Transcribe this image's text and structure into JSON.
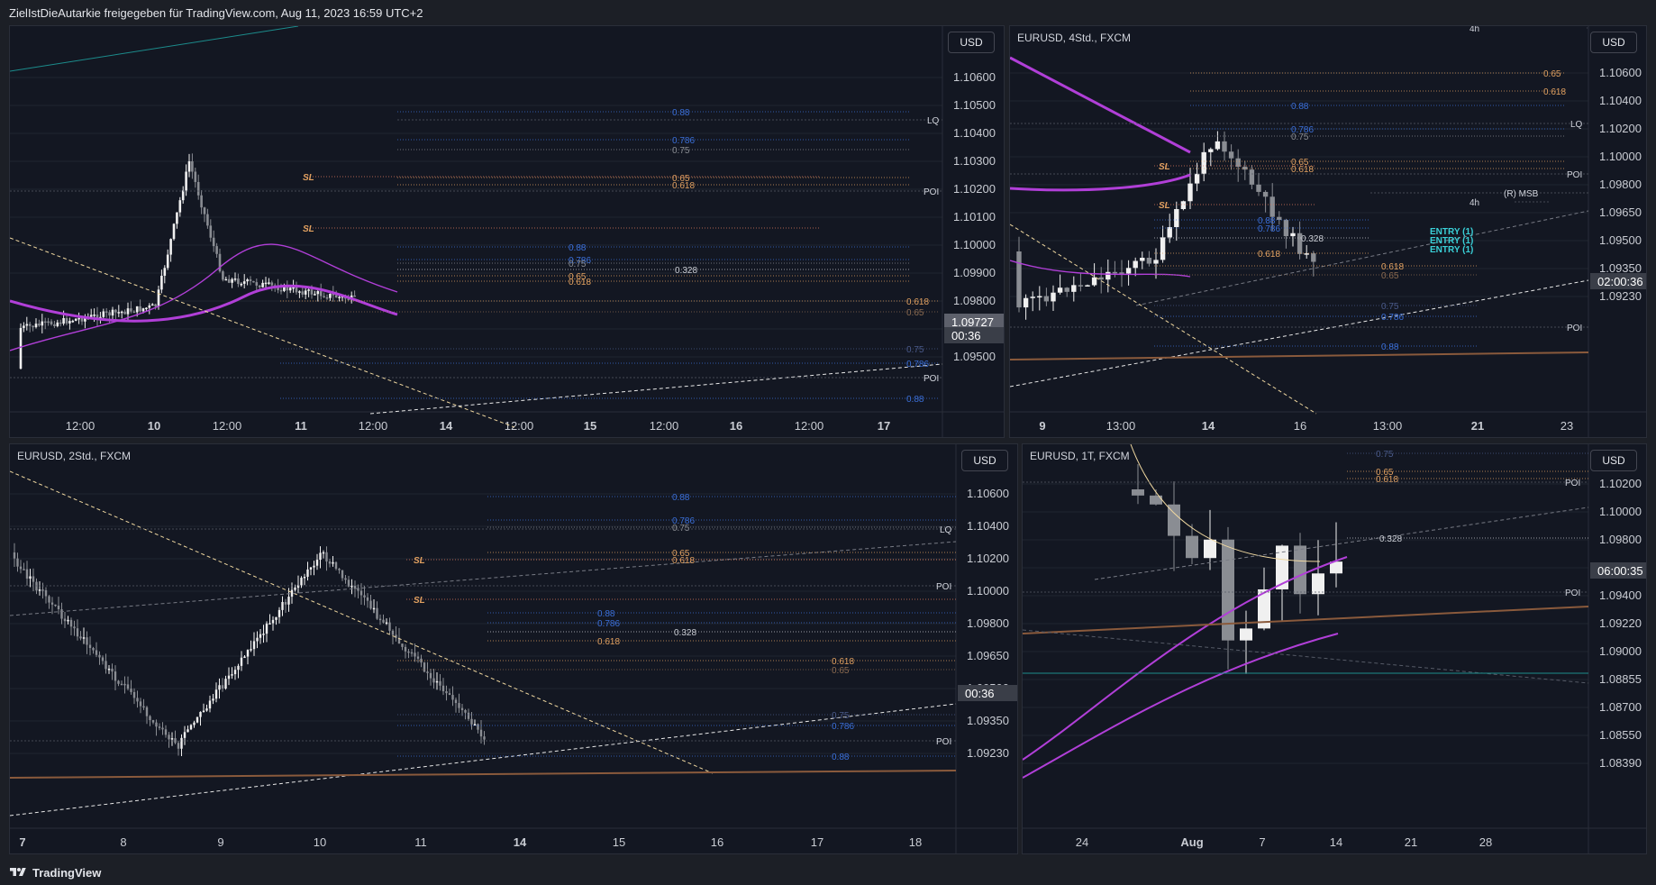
{
  "header": {
    "text": "ZielIstDieAutarkie freigegeben für TradingView.com, Aug 11, 2023 16:59 UTC+2"
  },
  "footer": {
    "brand": "TradingView"
  },
  "colors": {
    "bg": "#131722",
    "grid": "#1f2430",
    "up": "#f0f0f0",
    "down": "#8a8d93",
    "ma_purple": "#b13fd8",
    "blue_fib": "#3b6fd8",
    "orange_fib": "#e0a060",
    "trend_white": "#e8e8e8",
    "trend_cream": "#f0d8a0",
    "brown_line": "#8a5a3c",
    "teal": "#1c8c8c",
    "cyan_label": "#3ad0d8"
  },
  "chart_data": [
    {
      "id": "p1",
      "type": "candlestick",
      "title": "",
      "currency": "USD",
      "yticks": [
        "1.10600",
        "1.10500",
        "1.10400",
        "1.10300",
        "1.10200",
        "1.10100",
        "1.10000",
        "1.09900",
        "1.09800",
        "1.09600",
        "1.09500"
      ],
      "price_label": "1.09727",
      "countdown": "00:36",
      "xticks": [
        "12:00",
        "10",
        "12:00",
        "11",
        "12:00",
        "14",
        "12:00",
        "15",
        "12:00",
        "16",
        "12:00",
        "17"
      ],
      "fib_labels": [
        "0.88",
        "0.786",
        "0.75",
        "0.65",
        "0.618",
        "0.88",
        "0.786",
        "0.75",
        "0.65",
        "0.618",
        "0.328",
        "0.618",
        "0.65",
        "0.75",
        "0.786",
        "0.88"
      ],
      "sl_labels": [
        "SL",
        "SL"
      ],
      "side_labels": [
        "LQ",
        "POI",
        "POI"
      ]
    },
    {
      "id": "p2",
      "type": "candlestick",
      "title": "EURUSD, 4Std., FXCM",
      "currency": "USD",
      "yticks": [
        "1.10600",
        "1.10400",
        "1.10200",
        "1.10000",
        "1.09800",
        "1.09650",
        "1.09500",
        "1.09350",
        "1.09230"
      ],
      "countdown": "02:00:36",
      "xticks": [
        "9",
        "13:00",
        "14",
        "16",
        "13:00",
        "21",
        "23"
      ],
      "fib_labels": [
        "0.65",
        "0.618",
        "0.88",
        "0.786",
        "0.75",
        "0.65",
        "0.618",
        "0.88",
        "0.786",
        "0.328",
        "0.618",
        "0.618",
        "0.65",
        "0.75",
        "0.786",
        "0.88"
      ],
      "sl_labels": [
        "SL",
        "SL"
      ],
      "side_labels": [
        "LQ",
        "POI",
        "(R) MSB",
        "4h",
        "4h",
        "POI"
      ],
      "entry_labels": [
        "ENTRY (1)",
        "ENTRY (1)",
        "ENTRY (1)"
      ]
    },
    {
      "id": "p3",
      "type": "candlestick",
      "title": "EURUSD, 2Std., FXCM",
      "currency": "USD",
      "yticks": [
        "1.10600",
        "1.10400",
        "1.10200",
        "1.10000",
        "1.09800",
        "1.09650",
        "1.09500",
        "1.09350",
        "1.09230"
      ],
      "countdown": "00:36",
      "xticks": [
        "7",
        "8",
        "9",
        "10",
        "11",
        "14",
        "15",
        "16",
        "17",
        "18"
      ],
      "fib_labels": [
        "0.88",
        "0.786",
        "0.75",
        "0.65",
        "0.618",
        "0.88",
        "0.786",
        "0.618",
        "0.328",
        "0.618",
        "0.65",
        "0.75",
        "0.786",
        "0.88"
      ],
      "sl_labels": [
        "SL",
        "SL"
      ],
      "side_labels": [
        "LQ",
        "POI",
        "POI"
      ]
    },
    {
      "id": "p4",
      "type": "candlestick",
      "title": "EURUSD, 1T, FXCM",
      "currency": "USD",
      "yticks": [
        "1.10200",
        "1.10000",
        "1.09800",
        "1.09600",
        "1.09400",
        "1.09220",
        "1.09000",
        "1.08855",
        "1.08700",
        "1.08550",
        "1.08390"
      ],
      "countdown": "06:00:35",
      "xticks": [
        "24",
        "Aug",
        "7",
        "14",
        "21",
        "28"
      ],
      "fib_labels": [
        "0.75",
        "0.65",
        "0.618",
        "0.328"
      ],
      "side_labels": [
        "POI",
        "POI"
      ]
    }
  ]
}
